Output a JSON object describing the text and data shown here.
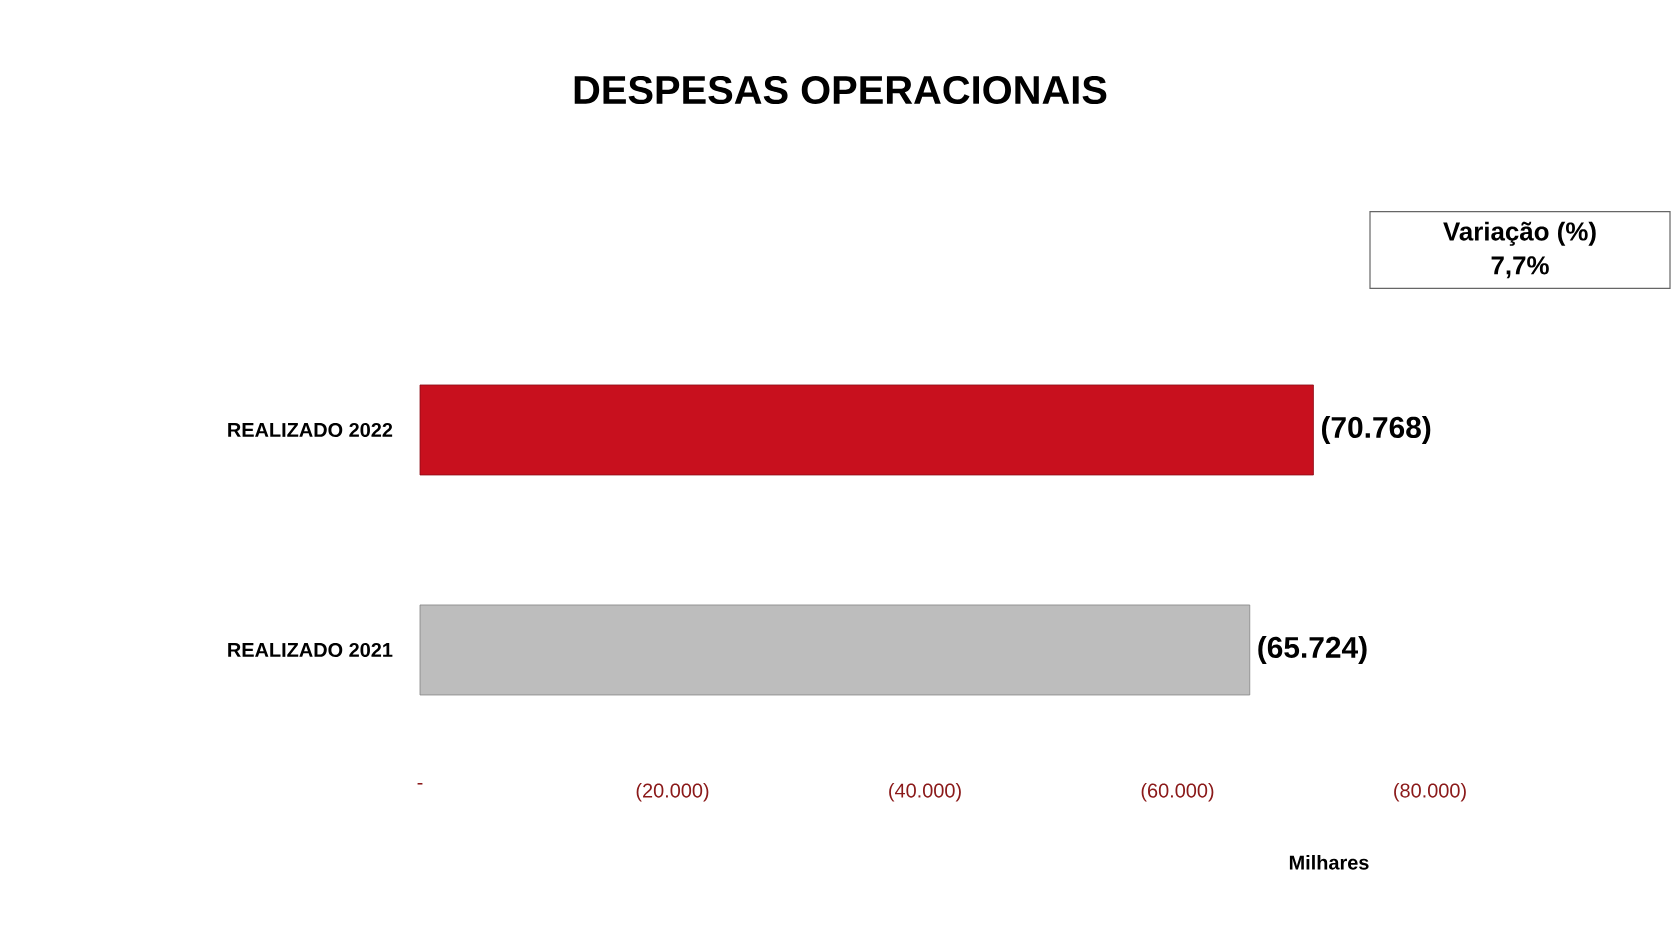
{
  "chart_data": {
    "type": "bar",
    "orientation": "horizontal",
    "title": "DESPESAS OPERACIONAIS",
    "categories": [
      "REALIZADO 2022",
      "REALIZADO 2021"
    ],
    "values": [
      -70768,
      -65724
    ],
    "colors": [
      "#c8101e",
      "#bdbdbd"
    ],
    "value_labels": [
      "(70.768)",
      "(65.724)"
    ],
    "xlabel": "Milhares",
    "xlim": [
      0,
      -80000
    ],
    "xticks": [
      {
        "value": 0,
        "label": "-"
      },
      {
        "value": -20000,
        "label": "(20.000)"
      },
      {
        "value": -40000,
        "label": "(40.000)"
      },
      {
        "value": -60000,
        "label": "(60.000)"
      },
      {
        "value": -80000,
        "label": "(80.000)"
      }
    ],
    "annotations": [
      "Variação (%)",
      "7,7%"
    ],
    "grid": false
  }
}
